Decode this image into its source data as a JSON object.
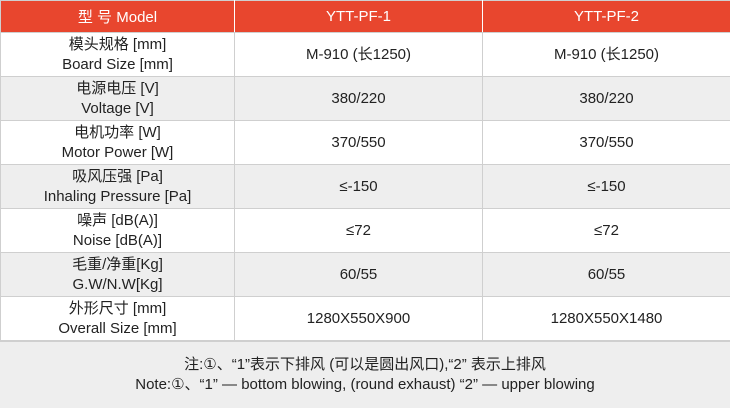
{
  "header": {
    "label": "型 号 Model",
    "models": [
      "YTT-PF-1",
      "YTT-PF-2"
    ]
  },
  "rows": [
    {
      "label_cn": "模头规格 [mm]",
      "label_en": "Board Size [mm]",
      "values": [
        "M-910 (长1250)",
        "M-910 (长1250)"
      ]
    },
    {
      "label_cn": "电源电压 [V]",
      "label_en": "Voltage [V]",
      "values": [
        "380/220",
        "380/220"
      ]
    },
    {
      "label_cn": "电机功率 [W]",
      "label_en": "Motor Power [W]",
      "values": [
        "370/550",
        "370/550"
      ]
    },
    {
      "label_cn": "吸风压强 [Pa]",
      "label_en": "Inhaling Pressure [Pa]",
      "values": [
        "≤-150",
        "≤-150"
      ]
    },
    {
      "label_cn": "噪声 [dB(A)]",
      "label_en": "Noise [dB(A)]",
      "values": [
        "≤72",
        "≤72"
      ]
    },
    {
      "label_cn": "毛重/净重[Kg]",
      "label_en": "G.W/N.W[Kg]",
      "values": [
        "60/55",
        "60/55"
      ]
    },
    {
      "label_cn": "外形尺寸 [mm]",
      "label_en": "Overall Size [mm]",
      "values": [
        "1280X550X900",
        "1280X550X1480"
      ]
    }
  ],
  "note": {
    "cn": "注:①、“1”表示下排风 (可以是圆出风口),“2” 表示上排风",
    "en": "Note:①、“1” — bottom blowing, (round exhaust) “2” — upper blowing"
  },
  "colors": {
    "header_bg": "#e8462e",
    "shaded_row": "#eeeeee"
  }
}
